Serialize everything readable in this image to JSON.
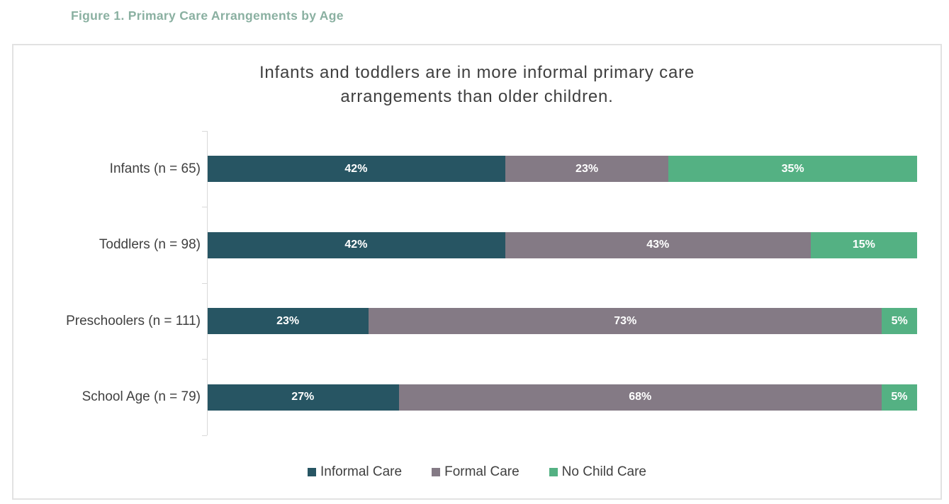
{
  "figure_caption": "Figure 1. Primary Care Arrangements by Age",
  "chart_data": {
    "type": "bar",
    "variant": "horizontal-100pct-stacked",
    "title": "Infants and toddlers are in more informal primary care arrangements than older children.",
    "title_lines": [
      "Infants and toddlers are in more informal primary care",
      "arrangements than older children."
    ],
    "categories": [
      "Infants (n = 65)",
      "Toddlers (n = 98)",
      "Preschoolers (n = 111)",
      "School Age (n = 79)"
    ],
    "series": [
      {
        "name": "Informal Care",
        "color": "#275563",
        "values": [
          42,
          42,
          23,
          27
        ]
      },
      {
        "name": "Formal Care",
        "color": "#847A85",
        "values": [
          23,
          43,
          73,
          68
        ]
      },
      {
        "name": "No Child Care",
        "color": "#54B183",
        "values": [
          35,
          15,
          5,
          5
        ]
      }
    ],
    "value_suffix": "%",
    "xlim": [
      0,
      100
    ],
    "grid": false,
    "legend_position": "bottom",
    "data_labels": "inside-center-white-bold"
  },
  "legend": {
    "items": [
      {
        "label": "Informal Care",
        "color": "#275563"
      },
      {
        "label": "Formal Care",
        "color": "#847A85"
      },
      {
        "label": "No Child Care",
        "color": "#54B183"
      }
    ]
  },
  "colors": {
    "caption_text": "#8AB0A1",
    "title_text": "#3F3F3F",
    "category_label_text": "#404040",
    "bar_value_text": "#FFFFFF",
    "axis_line": "#D9D9D9",
    "chart_border": "#E2E2E2",
    "background": "#FFFFFF"
  }
}
